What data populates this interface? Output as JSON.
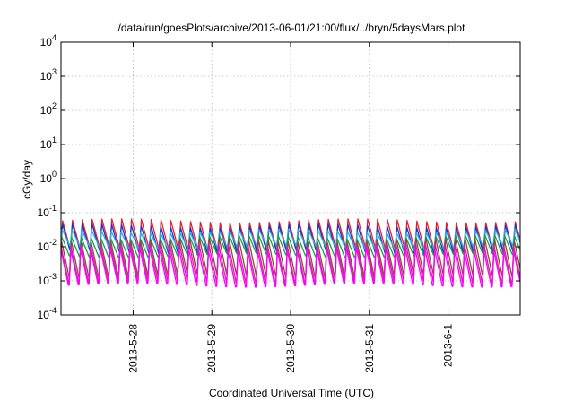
{
  "chart_data": {
    "type": "line",
    "title": "/data/run/goesPlots/archive/2013-06-01/21:00/flux/../bryn/5daysMars.plot",
    "xlabel": "Coordinated Universal Time (UTC)",
    "ylabel": "cGy/day",
    "yscale": "log",
    "ylim": [
      0.0001,
      10000
    ],
    "xlim": [
      "2013-05-27T02:00",
      "2013-06-01T22:00"
    ],
    "grid": true,
    "y_ticks": [
      {
        "value": 0.0001,
        "base": "10",
        "exp": "-4"
      },
      {
        "value": 0.001,
        "base": "10",
        "exp": "-3"
      },
      {
        "value": 0.01,
        "base": "10",
        "exp": "-2"
      },
      {
        "value": 0.1,
        "base": "10",
        "exp": "-1"
      },
      {
        "value": 1,
        "base": "10",
        "exp": "0"
      },
      {
        "value": 10,
        "base": "10",
        "exp": "1"
      },
      {
        "value": 100,
        "base": "10",
        "exp": "2"
      },
      {
        "value": 1000,
        "base": "10",
        "exp": "3"
      },
      {
        "value": 10000,
        "base": "10",
        "exp": "4"
      }
    ],
    "x_ticks": [
      {
        "label": "2013-5-28",
        "value": "2013-05-28T00:00"
      },
      {
        "label": "2013-5-29",
        "value": "2013-05-29T00:00"
      },
      {
        "label": "2013-5-30",
        "value": "2013-05-30T00:00"
      },
      {
        "label": "2013-5-31",
        "value": "2013-05-31T00:00"
      },
      {
        "label": "2013-6-1",
        "value": "2013-06-01T00:00"
      }
    ],
    "series_style": {
      "oscillation_period_hours": 3
    },
    "series": [
      {
        "color": "#e8202a",
        "peak": 0.06,
        "trough": 0.007
      },
      {
        "color": "#1f34c8",
        "peak": 0.045,
        "trough": 0.006
      },
      {
        "color": "#20b0e8",
        "peak": 0.03,
        "trough": 0.009
      },
      {
        "color": "#15a050",
        "peak": 0.02,
        "trough": 0.005
      },
      {
        "color": "#8b4a3a",
        "peak": 0.018,
        "trough": 0.0012
      },
      {
        "color": "#d020a0",
        "peak": 0.012,
        "trough": 0.0008
      },
      {
        "color": "#ff00ff",
        "peak": 0.009,
        "trough": 0.0006
      }
    ]
  }
}
